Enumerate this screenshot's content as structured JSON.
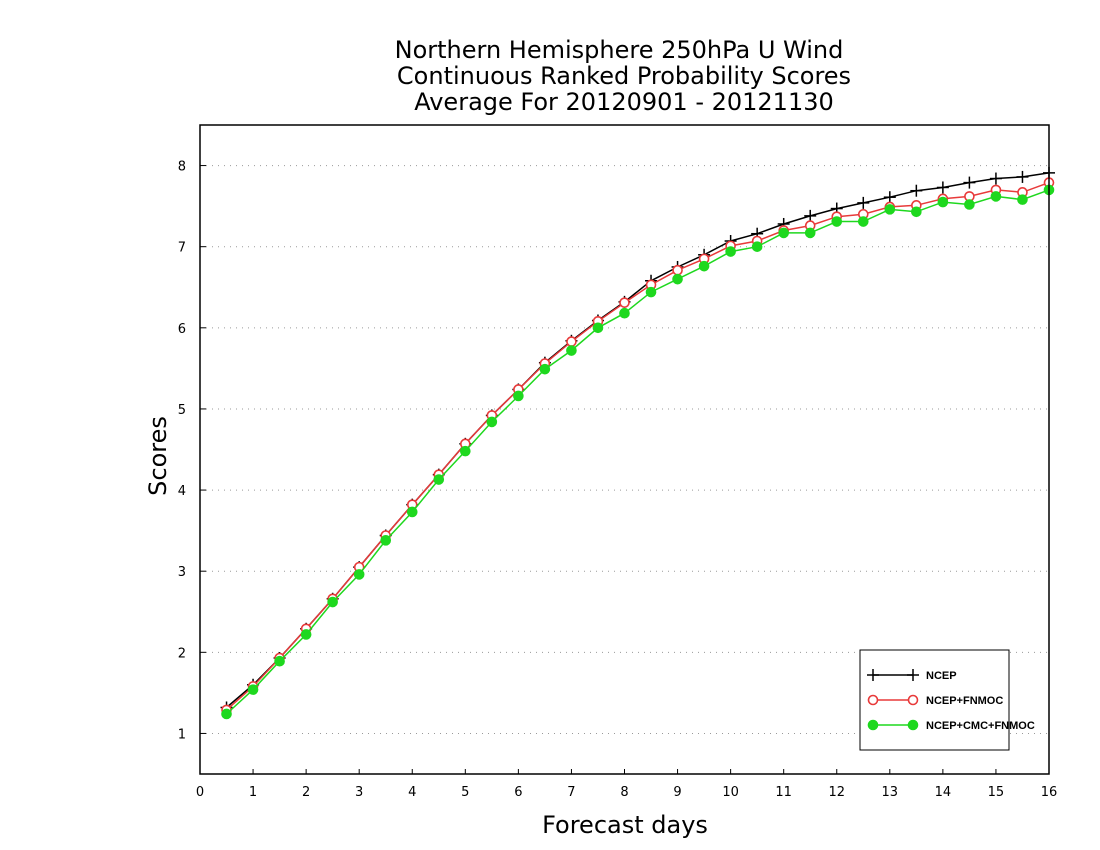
{
  "chart_data": {
    "type": "line",
    "title": [
      "Northern Hemisphere 250hPa U Wind",
      "Continuous Ranked Probability Scores",
      "Average For 20120901 - 20121130"
    ],
    "xlabel": "Forecast days",
    "ylabel": "Scores",
    "xlim": [
      0,
      16
    ],
    "ylim": [
      0.5,
      8.5
    ],
    "x_ticks": [
      "0",
      "1",
      "2",
      "3",
      "4",
      "5",
      "6",
      "7",
      "8",
      "9",
      "10",
      "11",
      "12",
      "13",
      "14",
      "15",
      "16"
    ],
    "y_ticks": [
      "1",
      "2",
      "3",
      "4",
      "5",
      "6",
      "7",
      "8"
    ],
    "grid": "horizontal dotted",
    "legend_position": "bottom-right",
    "x": [
      0.5,
      1,
      1.5,
      2,
      2.5,
      3,
      3.5,
      4,
      4.5,
      5,
      5.5,
      6,
      6.5,
      7,
      7.5,
      8,
      8.5,
      9,
      9.5,
      10,
      10.5,
      11,
      11.5,
      12,
      12.5,
      13,
      13.5,
      14,
      14.5,
      15,
      15.5,
      16
    ],
    "series": [
      {
        "name": "NCEP",
        "color": "#000000",
        "marker": "plus",
        "values": [
          1.32,
          1.6,
          1.93,
          2.29,
          2.66,
          3.05,
          3.44,
          3.82,
          4.19,
          4.57,
          4.92,
          5.24,
          5.57,
          5.84,
          6.09,
          6.32,
          6.58,
          6.75,
          6.9,
          7.07,
          7.16,
          7.28,
          7.38,
          7.47,
          7.54,
          7.61,
          7.69,
          7.73,
          7.79,
          7.84,
          7.86,
          7.91
        ]
      },
      {
        "name": "NCEP+FNMOC",
        "color": "#e83a3a",
        "marker": "open-circle",
        "values": [
          1.29,
          1.58,
          1.93,
          2.29,
          2.66,
          3.05,
          3.44,
          3.82,
          4.19,
          4.57,
          4.92,
          5.24,
          5.56,
          5.83,
          6.08,
          6.31,
          6.53,
          6.71,
          6.85,
          7.01,
          7.07,
          7.2,
          7.26,
          7.37,
          7.4,
          7.49,
          7.51,
          7.59,
          7.62,
          7.7,
          7.67,
          7.79
        ]
      },
      {
        "name": "NCEP+CMC+FNMOC",
        "color": "#1ed81e",
        "marker": "filled-circle",
        "values": [
          1.24,
          1.54,
          1.89,
          2.22,
          2.62,
          2.96,
          3.38,
          3.73,
          4.13,
          4.48,
          4.84,
          5.16,
          5.49,
          5.72,
          6.0,
          6.18,
          6.44,
          6.6,
          6.76,
          6.94,
          7.0,
          7.17,
          7.17,
          7.31,
          7.31,
          7.46,
          7.43,
          7.55,
          7.52,
          7.62,
          7.58,
          7.7
        ]
      }
    ]
  }
}
